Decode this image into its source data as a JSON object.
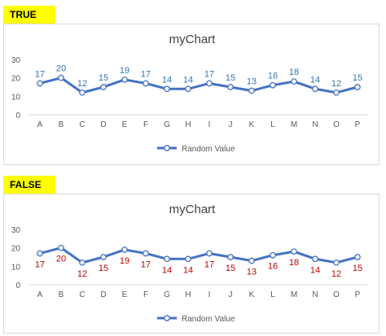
{
  "chart_data": [
    {
      "label": "TRUE",
      "type": "line",
      "title": "myChart",
      "categories": [
        "A",
        "B",
        "C",
        "D",
        "E",
        "F",
        "G",
        "H",
        "I",
        "J",
        "K",
        "L",
        "M",
        "N",
        "O",
        "P"
      ],
      "series": [
        {
          "name": "Random Value",
          "values": [
            17,
            20,
            12,
            15,
            19,
            17,
            14,
            14,
            17,
            15,
            13,
            16,
            18,
            14,
            12,
            15
          ]
        }
      ],
      "ylim": [
        0,
        30
      ],
      "yticks": [
        0,
        10,
        20,
        30
      ],
      "data_label_position": "above",
      "data_label_color": "#2e75b6",
      "line_color": "#4472c4",
      "legend": "bottom",
      "grid": false
    },
    {
      "label": "FALSE",
      "type": "line",
      "title": "myChart",
      "categories": [
        "A",
        "B",
        "C",
        "D",
        "E",
        "F",
        "G",
        "H",
        "I",
        "J",
        "K",
        "L",
        "M",
        "N",
        "O",
        "P"
      ],
      "series": [
        {
          "name": "Random Value",
          "values": [
            17,
            20,
            12,
            15,
            19,
            17,
            14,
            14,
            17,
            15,
            13,
            16,
            18,
            14,
            12,
            15
          ]
        }
      ],
      "ylim": [
        0,
        30
      ],
      "yticks": [
        0,
        10,
        20,
        30
      ],
      "data_label_position": "below",
      "data_label_color": "#c00000",
      "line_color": "#4472c4",
      "legend": "bottom",
      "grid": false
    }
  ]
}
